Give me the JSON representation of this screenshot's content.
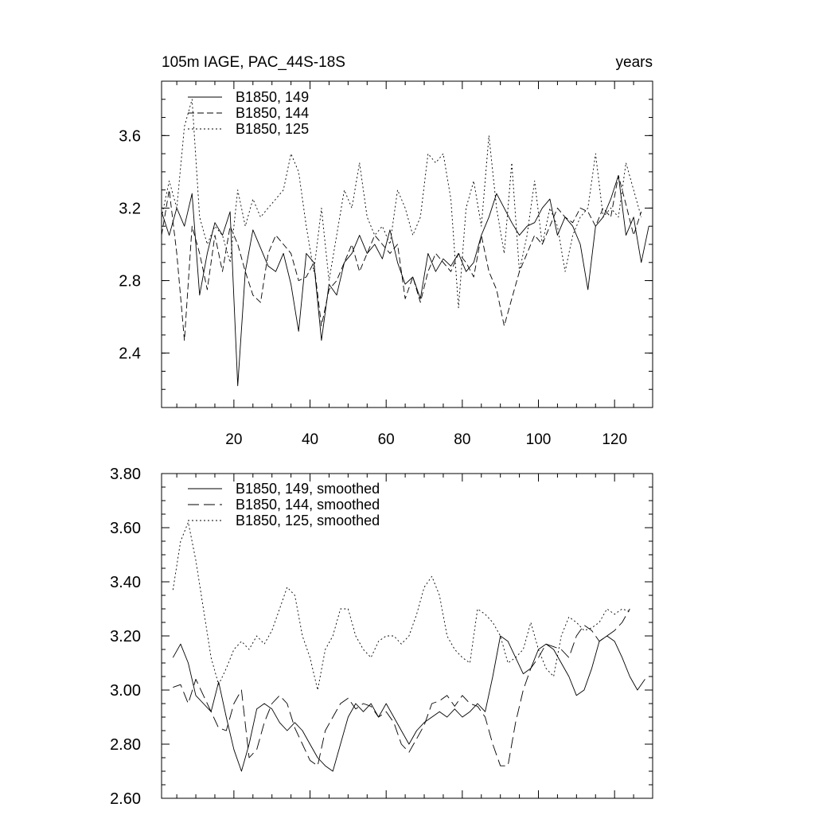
{
  "chart_data": [
    {
      "type": "line",
      "title_left": "105m IAGE, PAC_44S-18S",
      "title_right": "years",
      "xlim": [
        1,
        130
      ],
      "ylim": [
        2.1,
        3.9
      ],
      "x_ticks": [
        20,
        40,
        60,
        80,
        100,
        120
      ],
      "x_tick_labels": [
        "20",
        "40",
        "60",
        "80",
        "100",
        "120"
      ],
      "y_ticks": [
        2.4,
        2.8,
        3.2,
        3.6
      ],
      "y_tick_labels": [
        "2.4",
        "2.8",
        "3.2",
        "3.6"
      ],
      "legend_position": "top-left",
      "series": [
        {
          "name": "B1850, 149",
          "style": "solid",
          "x": [
            1,
            3,
            5,
            7,
            9,
            11,
            13,
            15,
            17,
            19,
            21,
            23,
            25,
            27,
            29,
            31,
            33,
            35,
            37,
            39,
            41,
            43,
            45,
            47,
            49,
            51,
            53,
            55,
            57,
            59,
            61,
            63,
            65,
            67,
            69,
            71,
            73,
            75,
            77,
            79,
            81,
            83,
            85,
            87,
            89,
            91,
            93,
            95,
            97,
            99,
            101,
            103,
            105,
            107,
            109,
            111,
            113,
            115,
            117,
            119,
            121,
            123,
            125,
            127,
            129
          ],
          "y": [
            3.18,
            3.05,
            3.2,
            3.1,
            3.28,
            2.72,
            2.95,
            3.12,
            3.05,
            3.18,
            2.22,
            2.85,
            3.08,
            2.98,
            2.88,
            2.85,
            2.95,
            2.78,
            2.52,
            2.95,
            2.9,
            2.47,
            2.78,
            2.72,
            2.9,
            2.95,
            3.05,
            2.95,
            3.0,
            2.92,
            3.08,
            2.9,
            2.78,
            2.82,
            2.7,
            2.95,
            2.85,
            2.92,
            2.88,
            2.95,
            2.85,
            2.9,
            3.05,
            3.15,
            3.28,
            3.2,
            3.12,
            3.05,
            3.1,
            3.12,
            3.2,
            3.25,
            3.05,
            3.15,
            3.1,
            3.0,
            2.75,
            3.1,
            3.15,
            3.25,
            3.38,
            3.05,
            3.15,
            2.9,
            3.1
          ]
        },
        {
          "name": "B1850, 144",
          "style": "dashed",
          "x": [
            1,
            3,
            5,
            7,
            9,
            11,
            13,
            15,
            17,
            19,
            21,
            23,
            25,
            27,
            29,
            31,
            33,
            35,
            37,
            39,
            41,
            43,
            45,
            47,
            49,
            51,
            53,
            55,
            57,
            59,
            61,
            63,
            65,
            67,
            69,
            71,
            73,
            75,
            77,
            79,
            81,
            83,
            85,
            87,
            89,
            91,
            93,
            95,
            97,
            99,
            101,
            103,
            105,
            107,
            109,
            111,
            113,
            115,
            117,
            119,
            121,
            123,
            125,
            127
          ],
          "y": [
            3.05,
            3.3,
            2.95,
            2.47,
            3.1,
            2.95,
            2.75,
            3.05,
            2.85,
            3.1,
            3.0,
            2.85,
            2.72,
            2.68,
            2.95,
            3.05,
            3.0,
            2.95,
            2.8,
            2.82,
            2.9,
            2.55,
            2.75,
            2.8,
            2.9,
            3.0,
            2.85,
            2.95,
            3.05,
            3.0,
            2.95,
            3.0,
            2.7,
            2.82,
            2.68,
            2.85,
            2.95,
            2.9,
            2.85,
            2.95,
            2.9,
            2.82,
            3.05,
            2.85,
            2.75,
            2.55,
            2.7,
            2.85,
            2.95,
            3.05,
            3.0,
            3.1,
            3.2,
            3.15,
            3.12,
            3.2,
            3.18,
            3.1,
            3.2,
            3.15,
            3.38,
            3.22,
            3.05,
            3.18
          ]
        },
        {
          "name": "B1850, 125",
          "style": "dotted",
          "x": [
            1,
            3,
            5,
            7,
            9,
            11,
            13,
            15,
            17,
            19,
            21,
            23,
            25,
            27,
            29,
            31,
            33,
            35,
            37,
            39,
            41,
            43,
            45,
            47,
            49,
            51,
            53,
            55,
            57,
            59,
            61,
            63,
            65,
            67,
            69,
            71,
            73,
            75,
            77,
            79,
            81,
            83,
            85,
            87,
            89,
            91,
            93,
            95,
            97,
            99,
            101,
            103,
            105,
            107,
            109,
            111,
            113,
            115,
            117,
            119,
            121,
            123,
            125,
            127
          ],
          "y": [
            3.15,
            3.35,
            3.2,
            3.65,
            3.8,
            3.15,
            3.0,
            3.1,
            3.05,
            2.9,
            3.3,
            3.1,
            3.25,
            3.15,
            3.2,
            3.25,
            3.3,
            3.5,
            3.4,
            3.1,
            2.85,
            3.2,
            2.8,
            3.05,
            3.3,
            3.2,
            3.45,
            3.15,
            3.05,
            3.1,
            3.0,
            3.3,
            3.2,
            3.05,
            3.15,
            3.5,
            3.45,
            3.5,
            3.25,
            2.65,
            3.2,
            3.35,
            3.1,
            3.6,
            3.2,
            2.95,
            3.45,
            2.85,
            3.05,
            3.35,
            3.0,
            3.2,
            3.1,
            2.85,
            3.05,
            3.15,
            3.2,
            3.5,
            3.15,
            3.2,
            3.15,
            3.45,
            3.3,
            3.15
          ]
        }
      ]
    },
    {
      "type": "line",
      "xlim": [
        1,
        130
      ],
      "ylim": [
        2.6,
        3.8
      ],
      "y_ticks": [
        2.6,
        2.8,
        3.0,
        3.2,
        3.4,
        3.6,
        3.8
      ],
      "y_tick_labels": [
        "2.60",
        "2.80",
        "3.00",
        "3.20",
        "3.40",
        "3.60",
        "3.80"
      ],
      "legend_position": "top-left",
      "series": [
        {
          "name": "B1850, 149, smoothed",
          "style": "solid",
          "x": [
            4,
            6,
            8,
            10,
            12,
            14,
            16,
            18,
            20,
            22,
            24,
            26,
            28,
            30,
            32,
            34,
            36,
            38,
            40,
            42,
            44,
            46,
            48,
            50,
            52,
            54,
            56,
            58,
            60,
            62,
            64,
            66,
            68,
            70,
            72,
            74,
            76,
            78,
            80,
            82,
            84,
            86,
            88,
            90,
            92,
            94,
            96,
            98,
            100,
            102,
            104,
            106,
            108,
            110,
            112,
            114,
            116,
            118,
            120,
            122,
            124,
            126,
            128
          ],
          "y": [
            3.12,
            3.17,
            3.1,
            2.98,
            2.95,
            2.92,
            3.03,
            2.9,
            2.78,
            2.7,
            2.8,
            2.93,
            2.95,
            2.93,
            2.88,
            2.85,
            2.88,
            2.85,
            2.8,
            2.75,
            2.72,
            2.7,
            2.8,
            2.9,
            2.95,
            2.92,
            2.95,
            2.9,
            2.95,
            2.9,
            2.85,
            2.8,
            2.85,
            2.88,
            2.9,
            2.92,
            2.9,
            2.93,
            2.9,
            2.92,
            2.95,
            2.92,
            3.05,
            3.2,
            3.18,
            3.12,
            3.06,
            3.08,
            3.15,
            3.17,
            3.15,
            3.1,
            3.05,
            2.98,
            3.0,
            3.08,
            3.18,
            3.2,
            3.18,
            3.12,
            3.05,
            3.0,
            3.04
          ]
        },
        {
          "name": "B1850, 144, smoothed",
          "style": "dashed",
          "x": [
            4,
            6,
            8,
            10,
            12,
            14,
            16,
            18,
            20,
            22,
            24,
            26,
            28,
            30,
            32,
            34,
            36,
            38,
            40,
            42,
            44,
            46,
            48,
            50,
            52,
            54,
            56,
            58,
            60,
            62,
            64,
            66,
            68,
            70,
            72,
            74,
            76,
            78,
            80,
            82,
            84,
            86,
            88,
            90,
            92,
            94,
            96,
            98,
            100,
            102,
            104,
            106,
            108,
            110,
            112,
            114,
            116,
            118,
            120,
            122,
            124
          ],
          "y": [
            3.01,
            3.02,
            2.95,
            3.04,
            2.98,
            2.92,
            2.86,
            2.85,
            2.95,
            3.0,
            2.75,
            2.78,
            2.88,
            2.95,
            2.98,
            2.95,
            2.86,
            2.8,
            2.74,
            2.72,
            2.85,
            2.9,
            2.95,
            2.97,
            2.93,
            2.95,
            2.94,
            2.9,
            2.92,
            2.88,
            2.8,
            2.77,
            2.82,
            2.87,
            2.95,
            2.96,
            2.98,
            2.94,
            2.98,
            2.95,
            2.94,
            2.9,
            2.8,
            2.72,
            2.72,
            2.88,
            3.0,
            3.08,
            3.12,
            3.17,
            3.16,
            3.15,
            3.12,
            3.2,
            3.24,
            3.22,
            3.18,
            3.2,
            3.22,
            3.25,
            3.3
          ]
        },
        {
          "name": "B1850, 125, smoothed",
          "style": "dotted",
          "x": [
            4,
            6,
            8,
            10,
            12,
            14,
            16,
            18,
            20,
            22,
            24,
            26,
            28,
            30,
            32,
            34,
            36,
            38,
            40,
            42,
            44,
            46,
            48,
            50,
            52,
            54,
            56,
            58,
            60,
            62,
            64,
            66,
            68,
            70,
            72,
            74,
            76,
            78,
            80,
            82,
            84,
            86,
            88,
            90,
            92,
            94,
            96,
            98,
            100,
            102,
            104,
            106,
            108,
            110,
            112,
            114,
            116,
            118,
            120,
            122,
            124
          ],
          "y": [
            3.37,
            3.55,
            3.62,
            3.48,
            3.3,
            3.12,
            3.02,
            3.08,
            3.15,
            3.18,
            3.15,
            3.2,
            3.17,
            3.22,
            3.3,
            3.38,
            3.35,
            3.2,
            3.12,
            3.0,
            3.15,
            3.2,
            3.3,
            3.3,
            3.2,
            3.15,
            3.12,
            3.18,
            3.2,
            3.2,
            3.17,
            3.2,
            3.28,
            3.38,
            3.42,
            3.35,
            3.2,
            3.15,
            3.12,
            3.1,
            3.3,
            3.28,
            3.25,
            3.2,
            3.1,
            3.12,
            3.15,
            3.25,
            3.15,
            3.08,
            3.05,
            3.2,
            3.27,
            3.25,
            3.22,
            3.23,
            3.25,
            3.3,
            3.28,
            3.3,
            3.29
          ]
        }
      ]
    }
  ]
}
